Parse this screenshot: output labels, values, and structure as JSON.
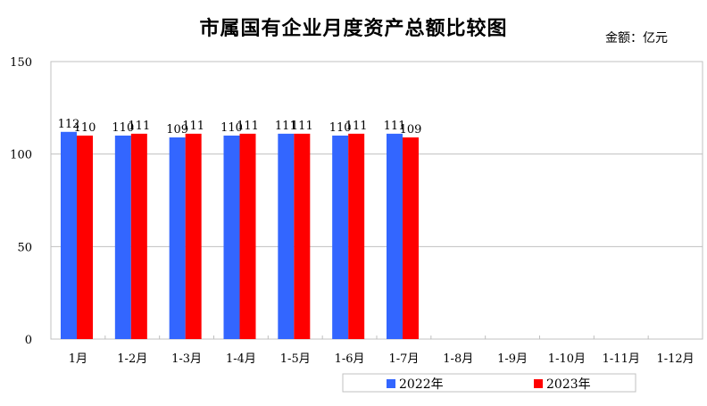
{
  "chart_data": {
    "type": "bar",
    "title": "市属国有企业月度资产总额比较图",
    "unit_label": "金额：亿元",
    "categories": [
      "1月",
      "1-2月",
      "1-3月",
      "1-4月",
      "1-5月",
      "1-6月",
      "1-7月",
      "1-8月",
      "1-9月",
      "1-10月",
      "1-11月",
      "1-12月"
    ],
    "series": [
      {
        "name": "2022年",
        "color": "#3366ff",
        "values": [
          112,
          110,
          109,
          110,
          111,
          110,
          111,
          null,
          null,
          null,
          null,
          null
        ]
      },
      {
        "name": "2023年",
        "color": "#ff0000",
        "values": [
          110,
          111,
          111,
          111,
          111,
          111,
          109,
          null,
          null,
          null,
          null,
          null
        ]
      }
    ],
    "ylim": [
      0,
      150
    ],
    "yticks": [
      0,
      50,
      100,
      150
    ],
    "grid": true,
    "legend": "bottom"
  }
}
